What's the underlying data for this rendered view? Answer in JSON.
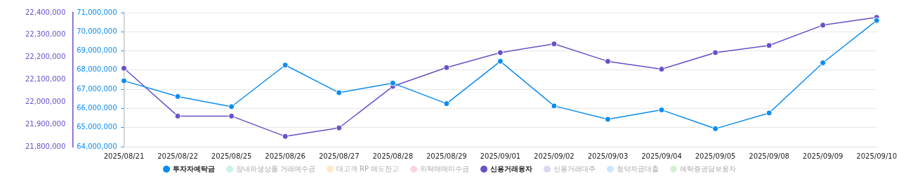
{
  "chart_data": {
    "type": "line",
    "categories": [
      "2025/08/21",
      "2025/08/22",
      "2025/08/25",
      "2025/08/26",
      "2025/08/27",
      "2025/08/28",
      "2025/08/29",
      "2025/09/01",
      "2025/09/02",
      "2025/09/03",
      "2025/09/04",
      "2025/09/05",
      "2025/09/08",
      "2025/09/09",
      "2025/09/10"
    ],
    "series": [
      {
        "name": "투자자예탁금",
        "color": "#0a8cf0",
        "values": [
          67440000,
          66620000,
          66090000,
          68260000,
          66820000,
          67320000,
          66250000,
          68460000,
          66130000,
          65430000,
          65920000,
          64940000,
          65760000,
          68380000,
          70590000
        ]
      },
      {
        "name": "장내파생상품 거래예수금",
        "color": "#c9f2e3",
        "values": [
          null,
          null,
          null,
          null,
          null,
          null,
          null,
          null,
          null,
          null,
          null,
          null,
          null,
          null,
          null
        ]
      },
      {
        "name": "대고객 RP 매도잔고",
        "color": "#fdeac6",
        "values": [
          null,
          null,
          null,
          null,
          null,
          null,
          null,
          null,
          null,
          null,
          null,
          null,
          null,
          null,
          null
        ]
      },
      {
        "name": "위탁매매미수금",
        "color": "#fbd5dc",
        "values": [
          null,
          null,
          null,
          null,
          null,
          null,
          null,
          null,
          null,
          null,
          null,
          null,
          null,
          null,
          null
        ]
      },
      {
        "name": "신용거래융자",
        "color": "#6a4fc8",
        "axis": "y2",
        "values": [
          22151000,
          21937000,
          21937000,
          21846000,
          21884000,
          22070000,
          22154000,
          22221000,
          22260000,
          22182000,
          22147000,
          22221000,
          22253000,
          22344000,
          22379000
        ]
      },
      {
        "name": "신용거래대주",
        "color": "#dcd8f1",
        "values": [
          null,
          null,
          null,
          null,
          null,
          null,
          null,
          null,
          null,
          null,
          null,
          null,
          null,
          null,
          null
        ]
      },
      {
        "name": "청약자금대출",
        "color": "#cde6fc",
        "values": [
          null,
          null,
          null,
          null,
          null,
          null,
          null,
          null,
          null,
          null,
          null,
          null,
          null,
          null,
          null
        ]
      },
      {
        "name": "예탁증권담보융자",
        "color": "#d6f0d6",
        "values": [
          null,
          null,
          null,
          null,
          null,
          null,
          null,
          null,
          null,
          null,
          null,
          null,
          null,
          null,
          null
        ]
      }
    ],
    "ylim": [
      64000000,
      71000000
    ],
    "yticks": [
      {
        "value": 64000000,
        "label": "64,000,000"
      },
      {
        "value": 65000000,
        "label": "65,000,000"
      },
      {
        "value": 66000000,
        "label": "66,000,000"
      },
      {
        "value": 67000000,
        "label": "67,000,000"
      },
      {
        "value": 68000000,
        "label": "68,000,000"
      },
      {
        "value": 69000000,
        "label": "69,000,000"
      },
      {
        "value": 70000000,
        "label": "70,000,000"
      },
      {
        "value": 71000000,
        "label": "71,000,000"
      }
    ],
    "y2lim": [
      21800000,
      22400000
    ],
    "y2ticks": [
      {
        "value": 21800000,
        "label": "21,800,000"
      },
      {
        "value": 21900000,
        "label": "21,900,000"
      },
      {
        "value": 22000000,
        "label": "22,000,000"
      },
      {
        "value": 22100000,
        "label": "22,100,000"
      },
      {
        "value": 22200000,
        "label": "22,200,000"
      },
      {
        "value": 22300000,
        "label": "22,300,000"
      },
      {
        "value": 22400000,
        "label": "22,400,000"
      }
    ],
    "grid": "y",
    "legend": "bottom",
    "marker": "circle",
    "line_style": "solid"
  }
}
